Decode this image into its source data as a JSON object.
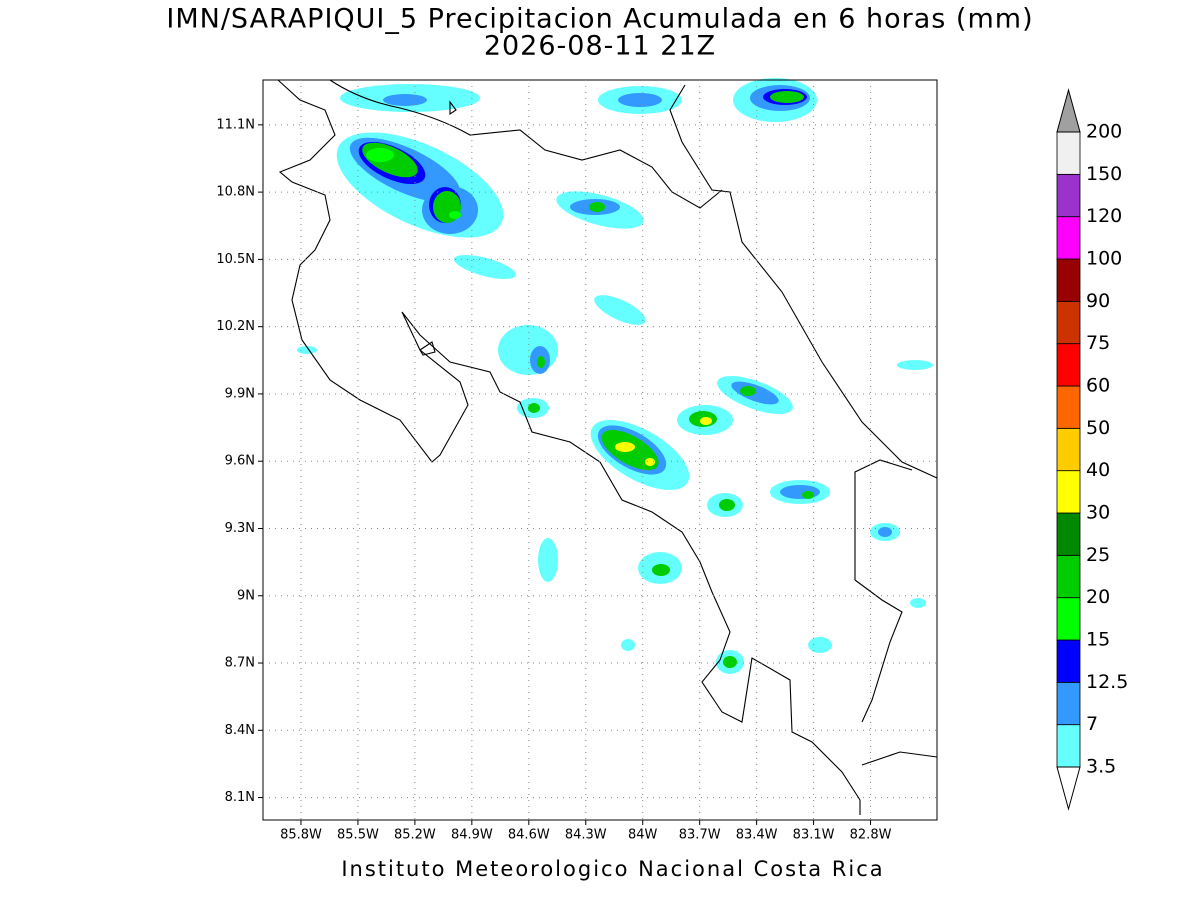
{
  "chart_data": {
    "type": "map",
    "title": "IMN/SARAPIQUI_5 Precipitacion Acumulada en 6 horas (mm)",
    "subtitle": "2026-08-11 21Z",
    "footer": "Instituto Meteorologico Nacional Costa Rica",
    "xlim": [
      -86.0,
      -82.45
    ],
    "ylim": [
      8.0,
      11.3
    ],
    "xticks": [
      {
        "value": -85.8,
        "label": "85.8W"
      },
      {
        "value": -85.5,
        "label": "85.5W"
      },
      {
        "value": -85.2,
        "label": "85.2W"
      },
      {
        "value": -84.9,
        "label": "84.9W"
      },
      {
        "value": -84.6,
        "label": "84.6W"
      },
      {
        "value": -84.3,
        "label": "84.3W"
      },
      {
        "value": -84.0,
        "label": "84W"
      },
      {
        "value": -83.7,
        "label": "83.7W"
      },
      {
        "value": -83.4,
        "label": "83.4W"
      },
      {
        "value": -83.1,
        "label": "83.1W"
      },
      {
        "value": -82.8,
        "label": "82.8W"
      }
    ],
    "yticks": [
      {
        "value": 8.1,
        "label": "8.1N"
      },
      {
        "value": 8.4,
        "label": "8.4N"
      },
      {
        "value": 8.7,
        "label": "8.7N"
      },
      {
        "value": 9.0,
        "label": "9N"
      },
      {
        "value": 9.3,
        "label": "9.3N"
      },
      {
        "value": 9.6,
        "label": "9.6N"
      },
      {
        "value": 9.9,
        "label": "9.9N"
      },
      {
        "value": 10.2,
        "label": "10.2N"
      },
      {
        "value": 10.5,
        "label": "10.5N"
      },
      {
        "value": 10.8,
        "label": "10.8N"
      },
      {
        "value": 11.1,
        "label": "11.1N"
      }
    ],
    "grid": true,
    "colorbar": {
      "levels": [
        3.5,
        7,
        12.5,
        15,
        20,
        25,
        30,
        40,
        50,
        60,
        75,
        90,
        100,
        120,
        150,
        200
      ],
      "colors": [
        "#66ffff",
        "#3399ff",
        "#0000ff",
        "#00ff00",
        "#00cc00",
        "#008800",
        "#ffff00",
        "#ffcc00",
        "#ff6600",
        "#ff0000",
        "#cc3300",
        "#990000",
        "#ff00ff",
        "#9933cc",
        "#f0f0f0"
      ],
      "under_color": "#ffffff",
      "over_color": "#a0a0a0"
    }
  }
}
